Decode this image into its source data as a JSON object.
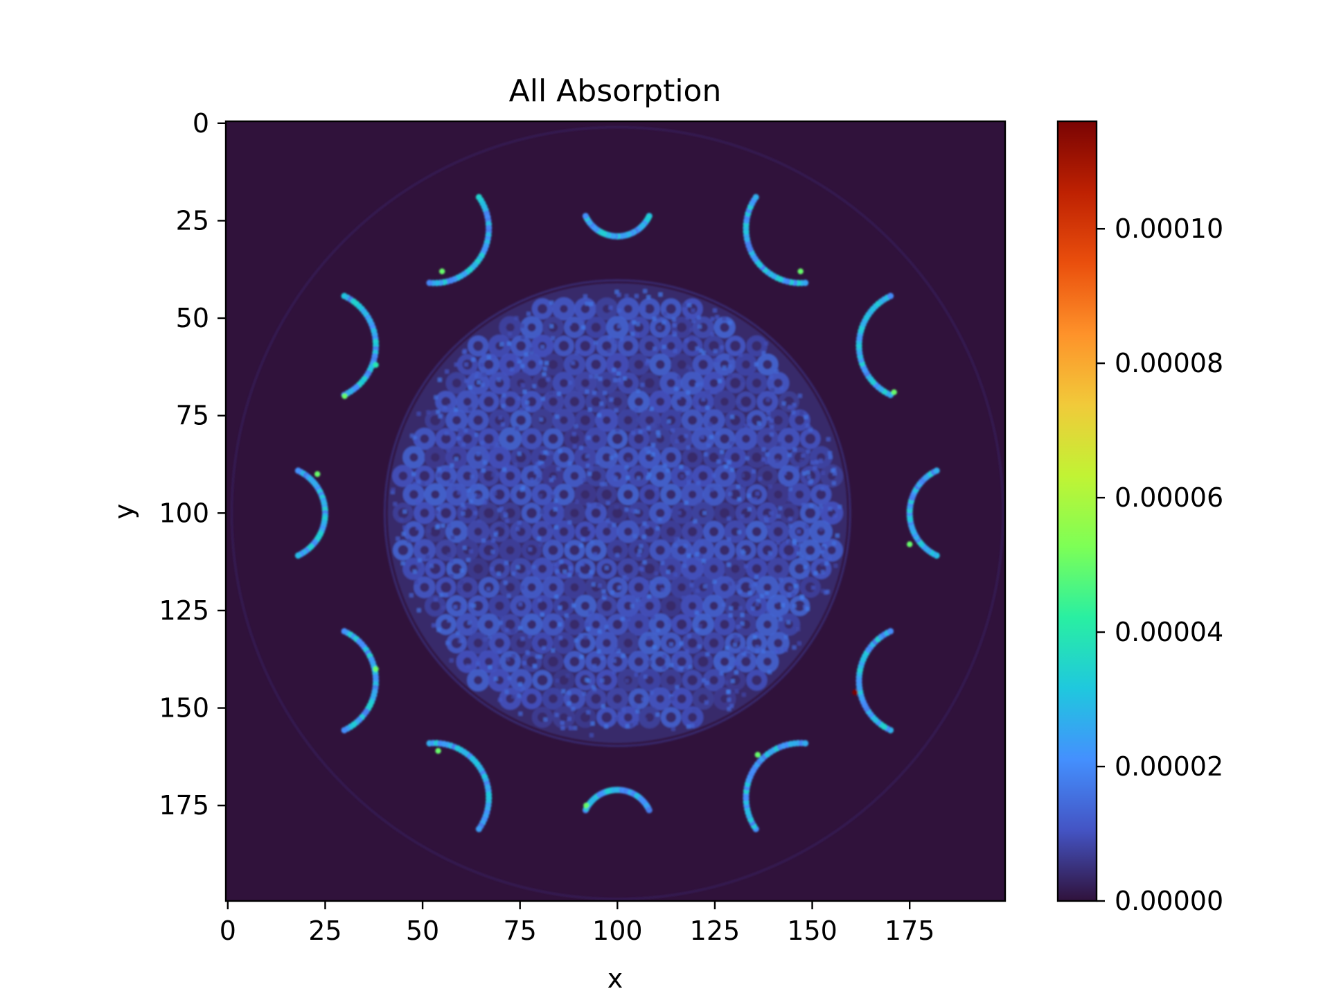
{
  "chart_data": {
    "type": "heatmap",
    "title": "All Absorption",
    "xlabel": "x",
    "ylabel": "y",
    "grid": false,
    "x_ticks": [
      "0",
      "25",
      "50",
      "75",
      "100",
      "125",
      "150",
      "175"
    ],
    "y_ticks": [
      "0",
      "25",
      "50",
      "75",
      "100",
      "125",
      "150",
      "175"
    ],
    "xlim": [
      0,
      200
    ],
    "ylim": [
      200,
      0
    ],
    "image_shape": [
      200,
      200
    ],
    "colormap": "turbo",
    "colorbar": {
      "range": [
        0,
        0.000116
      ],
      "ticks": [
        {
          "value": 0,
          "label": "0.00000"
        },
        {
          "value": 2e-05,
          "label": "0.00002"
        },
        {
          "value": 4e-05,
          "label": "0.00004"
        },
        {
          "value": 6e-05,
          "label": "0.00006"
        },
        {
          "value": 8e-05,
          "label": "0.00008"
        },
        {
          "value": 0.0001,
          "label": "0.00010"
        }
      ],
      "colors": [
        "#30123b",
        "#4454c4",
        "#4490fe",
        "#1fc8de",
        "#29efa2",
        "#7dff56",
        "#c1f334",
        "#f1ca3a",
        "#fe922a",
        "#ea4f0d",
        "#be2102",
        "#7a0403"
      ]
    },
    "background_value": 0.0,
    "outer_ring": {
      "center": [
        100,
        100
      ],
      "radius": 99,
      "value": 2e-06
    },
    "core_disk": {
      "center": [
        100,
        100
      ],
      "radius": 59,
      "mean_value": 8e-06,
      "hex_pitch": 5.5
    },
    "arc_segments": [
      {
        "center": [
          100,
          20
        ],
        "start_deg": 25,
        "end_deg": 155,
        "radius": 9,
        "value": 2.5e-05
      },
      {
        "center": [
          53,
          27
        ],
        "start_deg": 325,
        "end_deg": 455,
        "radius": 14,
        "value": 2.5e-05
      },
      {
        "center": [
          147,
          27
        ],
        "start_deg": 85,
        "end_deg": 215,
        "radius": 14,
        "value": 2.5e-05
      },
      {
        "center": [
          24,
          57
        ],
        "start_deg": 295,
        "end_deg": 425,
        "radius": 14,
        "value": 2.5e-05
      },
      {
        "center": [
          176,
          57
        ],
        "start_deg": 115,
        "end_deg": 245,
        "radius": 14,
        "value": 2.5e-05
      },
      {
        "center": [
          13,
          100
        ],
        "start_deg": 295,
        "end_deg": 425,
        "radius": 12,
        "value": 2.5e-05
      },
      {
        "center": [
          187,
          100
        ],
        "start_deg": 115,
        "end_deg": 245,
        "radius": 12,
        "value": 2.5e-05
      },
      {
        "center": [
          24,
          143
        ],
        "start_deg": 295,
        "end_deg": 425,
        "radius": 14,
        "value": 2.5e-05
      },
      {
        "center": [
          176,
          143
        ],
        "start_deg": 115,
        "end_deg": 245,
        "radius": 14,
        "value": 2.5e-05
      },
      {
        "center": [
          53,
          173
        ],
        "start_deg": 265,
        "end_deg": 395,
        "radius": 14,
        "value": 2.5e-05
      },
      {
        "center": [
          147,
          173
        ],
        "start_deg": 145,
        "end_deg": 275,
        "radius": 14,
        "value": 2.5e-05
      },
      {
        "center": [
          100,
          180
        ],
        "start_deg": 205,
        "end_deg": 335,
        "radius": 9,
        "value": 2.5e-05
      }
    ],
    "hot_spots": [
      {
        "x": 161,
        "y": 146,
        "value": 0.000116
      },
      {
        "x": 55,
        "y": 38,
        "value": 5e-05
      },
      {
        "x": 30,
        "y": 70,
        "value": 5e-05
      },
      {
        "x": 23,
        "y": 90,
        "value": 5e-05
      },
      {
        "x": 175,
        "y": 108,
        "value": 5e-05
      },
      {
        "x": 38,
        "y": 140,
        "value": 5e-05
      },
      {
        "x": 54,
        "y": 161,
        "value": 5e-05
      },
      {
        "x": 136,
        "y": 162,
        "value": 5e-05
      },
      {
        "x": 92,
        "y": 175,
        "value": 5e-05
      },
      {
        "x": 147,
        "y": 38,
        "value": 5e-05
      },
      {
        "x": 171,
        "y": 69,
        "value": 5e-05
      },
      {
        "x": 38,
        "y": 62,
        "value": 4e-05
      }
    ]
  }
}
